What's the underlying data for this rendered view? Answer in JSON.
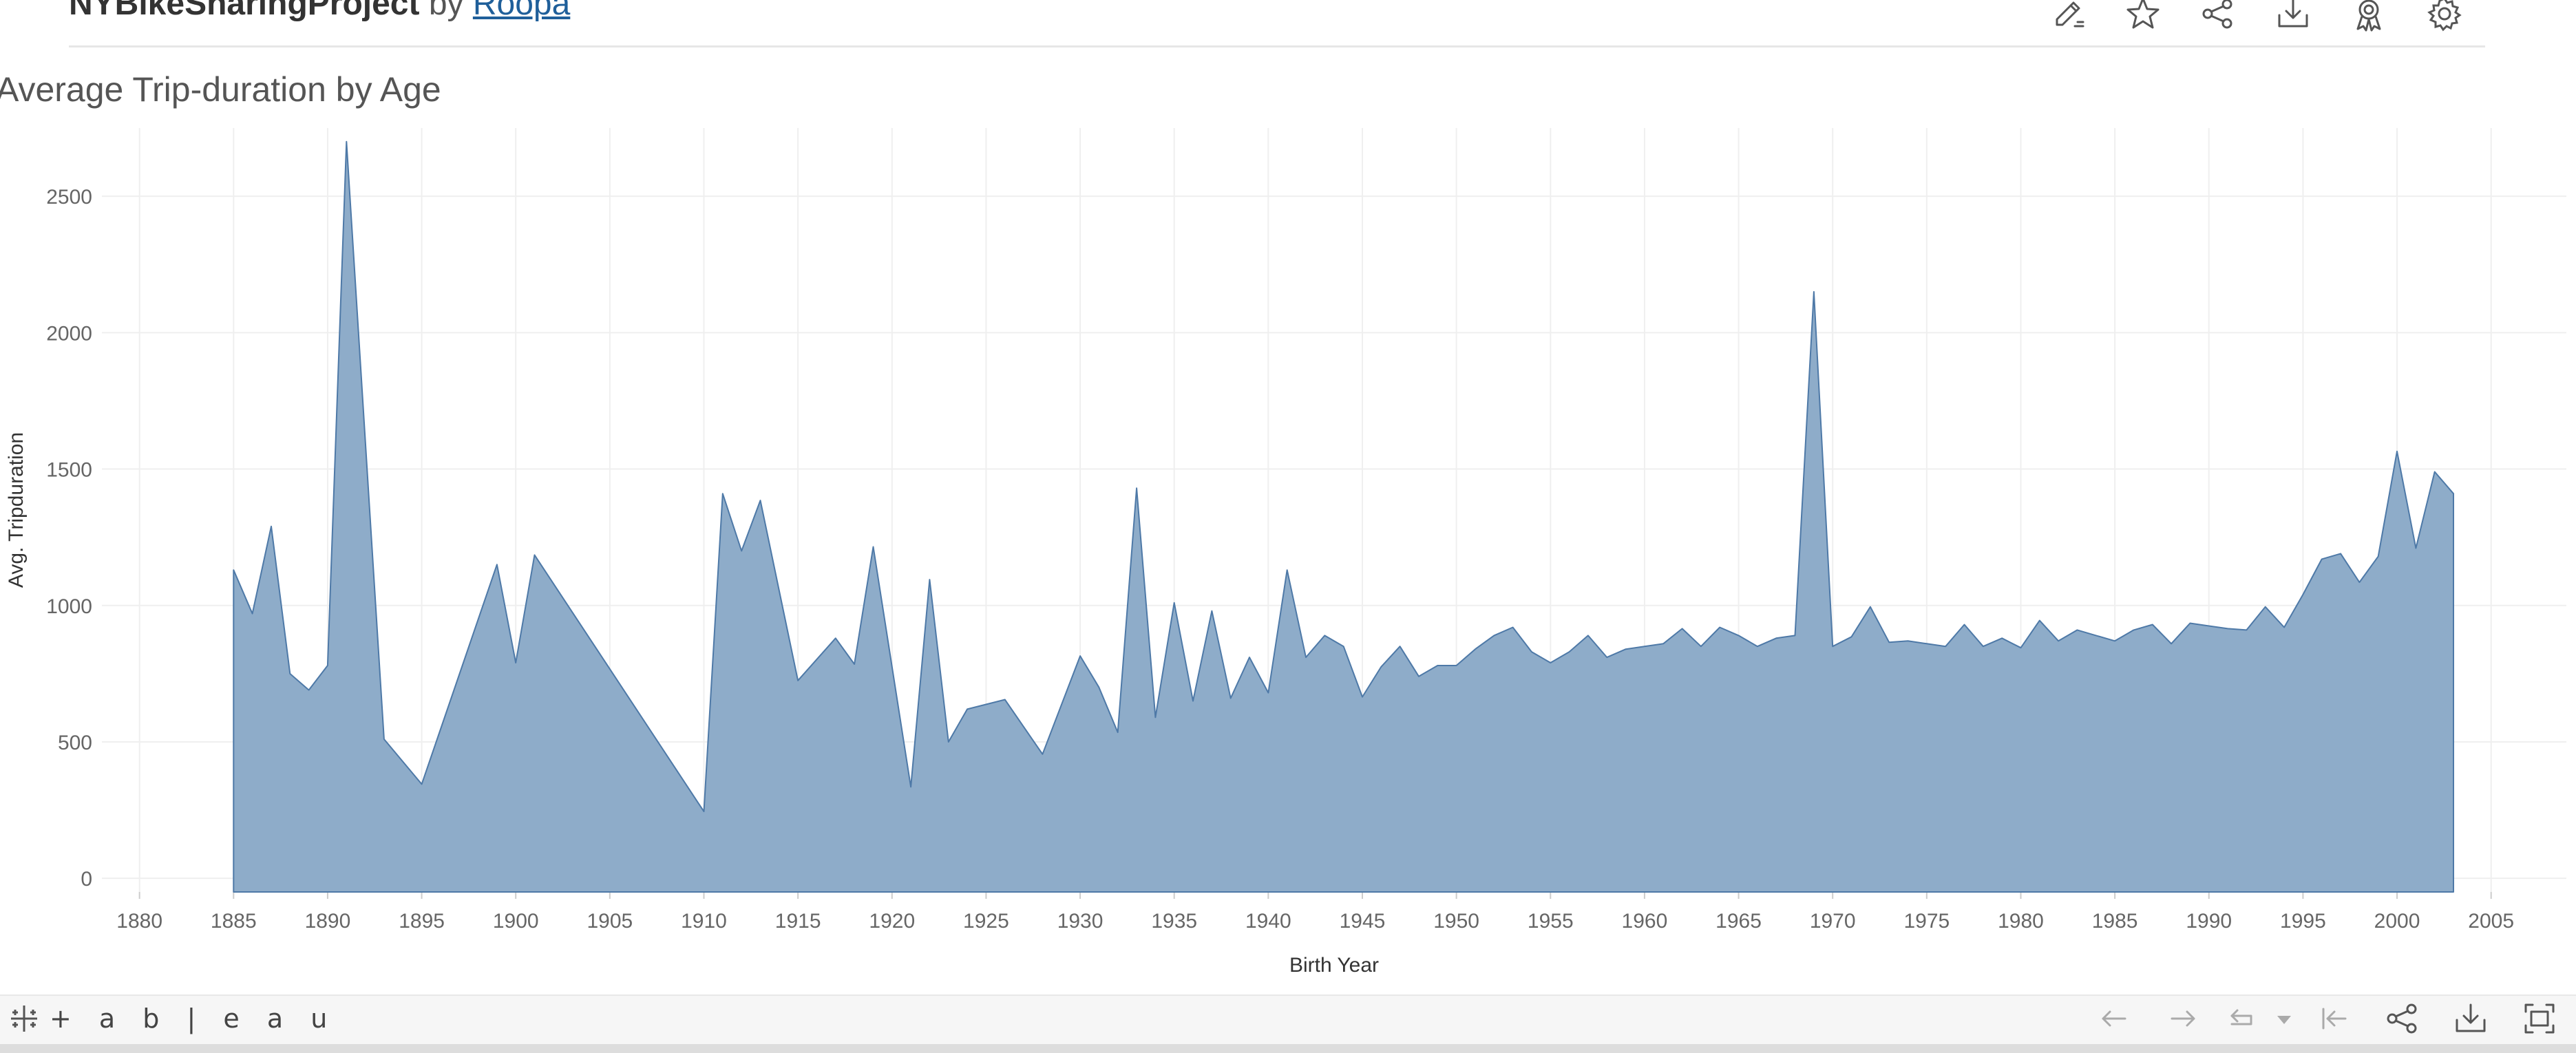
{
  "header": {
    "viz_name": "NYBikeSharingProject",
    "by_label": "by",
    "author": "Roopa",
    "toolbar_icons": [
      "edit-icon",
      "favorite-star-icon",
      "share-icon",
      "download-icon",
      "badge-icon",
      "settings-gear-icon"
    ]
  },
  "footer": {
    "logo_text": "+ a b | e a u",
    "nav_icons": [
      "undo-arrow-icon",
      "redo-arrow-icon",
      "revert-icon",
      "revert-dropdown-icon",
      "reset-first-icon",
      "share-icon",
      "download-icon",
      "fullscreen-icon"
    ]
  },
  "colors": {
    "area_fill": "#8eacc9",
    "area_stroke": "#4e79a7",
    "gridline": "#efefef",
    "axis_text": "#666666",
    "author_link": "#1f5f9a"
  },
  "chart_data": {
    "type": "area",
    "title": "Average Trip-duration by Age",
    "xlabel": "Birth Year",
    "ylabel": "Avg. Tripduration",
    "xlim": [
      1878,
      2009
    ],
    "ylim": [
      -50,
      2750
    ],
    "x_ticks": [
      1880,
      1885,
      1890,
      1895,
      1900,
      1905,
      1910,
      1915,
      1920,
      1925,
      1930,
      1935,
      1940,
      1945,
      1950,
      1955,
      1960,
      1965,
      1970,
      1975,
      1980,
      1985,
      1990,
      1995,
      2000,
      2005
    ],
    "y_ticks": [
      0,
      500,
      1000,
      1500,
      2000,
      2500
    ],
    "grid": true,
    "legend": "none",
    "x": [
      1885,
      1886,
      1887,
      1888,
      1889,
      1890,
      1891,
      1893,
      1895,
      1899,
      1900,
      1901,
      1910,
      1911,
      1912,
      1913,
      1915,
      1917,
      1918,
      1919,
      1921,
      1922,
      1923,
      1924,
      1926,
      1928,
      1930,
      1931,
      1932,
      1933,
      1934,
      1935,
      1936,
      1937,
      1938,
      1939,
      1940,
      1941,
      1942,
      1943,
      1944,
      1945,
      1946,
      1947,
      1948,
      1949,
      1950,
      1951,
      1952,
      1953,
      1954,
      1955,
      1956,
      1957,
      1958,
      1959,
      1960,
      1961,
      1962,
      1963,
      1964,
      1965,
      1966,
      1967,
      1968,
      1969,
      1970,
      1971,
      1972,
      1973,
      1974,
      1975,
      1976,
      1977,
      1978,
      1979,
      1980,
      1981,
      1982,
      1983,
      1984,
      1985,
      1986,
      1987,
      1988,
      1989,
      1990,
      1991,
      1992,
      1993,
      1994,
      1995,
      1996,
      1997,
      1998,
      1999,
      2000,
      2001,
      2002,
      2003
    ],
    "y": [
      1130,
      970,
      1290,
      750,
      690,
      780,
      2700,
      510,
      345,
      1150,
      790,
      1185,
      245,
      1410,
      1200,
      1385,
      725,
      880,
      785,
      1215,
      335,
      1095,
      500,
      620,
      655,
      455,
      815,
      700,
      535,
      1430,
      590,
      1010,
      650,
      980,
      660,
      810,
      680,
      1130,
      810,
      890,
      850,
      665,
      775,
      850,
      740,
      780,
      780,
      840,
      890,
      920,
      830,
      790,
      830,
      890,
      810,
      840,
      850,
      860,
      915,
      850,
      920,
      890,
      850,
      880,
      890,
      2150,
      850,
      885,
      995,
      865,
      870,
      860,
      850,
      930,
      850,
      880,
      845,
      945,
      870,
      910,
      890,
      870,
      910,
      930,
      860,
      935,
      925,
      915,
      910,
      995,
      920,
      1040,
      1170,
      1190,
      1085,
      1180,
      1565,
      1210,
      1490,
      1410
    ]
  }
}
